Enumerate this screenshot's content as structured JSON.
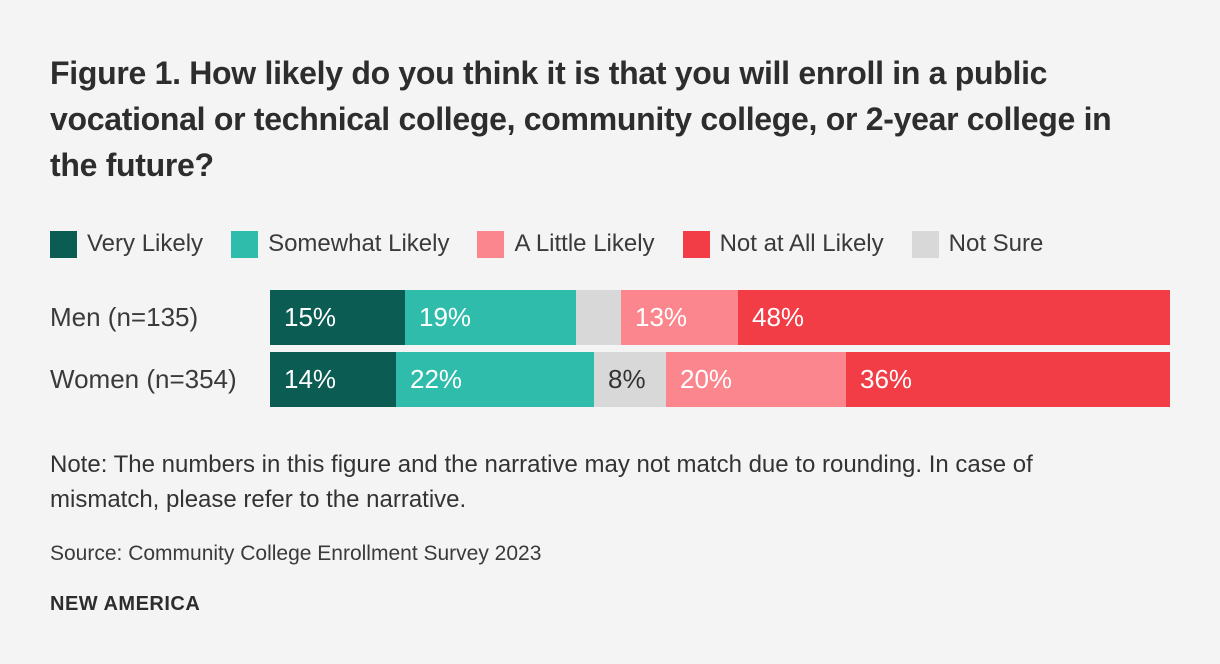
{
  "figure": {
    "title": "Figure 1. How likely do you think it is that you will enroll in a public vocational or technical college, community college, or 2-year college in the future?",
    "note": "Note: The numbers in this figure and the narrative may not match due to rounding. In case of mismatch, please refer to the narrative.",
    "source": "Source: Community College Enrollment Survey 2023",
    "brand": "NEW AMERICA"
  },
  "colors": {
    "background": "#f4f4f4",
    "very_likely": "#0b5c52",
    "somewhat_likely": "#2fbcab",
    "a_little_likely": "#fb868d",
    "not_at_all_likely": "#f23c46",
    "not_sure": "#d8d8d8",
    "text": "#333333"
  },
  "chart_data": {
    "type": "bar",
    "subtype": "stacked-horizontal",
    "unit": "percent",
    "title": "Figure 1. How likely do you think it is that you will enroll in a public vocational or technical college, community college, or 2-year college in the future?",
    "xlabel": "",
    "ylabel": "",
    "xlim": [
      0,
      100
    ],
    "grid": false,
    "legend_position": "top",
    "categories": [
      "Men (n=135)",
      "Women (n=354)"
    ],
    "legend": [
      {
        "label": "Very Likely",
        "color": "#0b5c52"
      },
      {
        "label": "Somewhat Likely",
        "color": "#2fbcab"
      },
      {
        "label": "A Little Likely",
        "color": "#fb868d"
      },
      {
        "label": "Not at All Likely",
        "color": "#f23c46"
      },
      {
        "label": "Not Sure",
        "color": "#d8d8d8"
      }
    ],
    "segment_order": [
      "Very Likely",
      "Somewhat Likely",
      "Not Sure",
      "A Little Likely",
      "Not at All Likely"
    ],
    "series": [
      {
        "name": "Very Likely",
        "values": [
          15,
          14
        ]
      },
      {
        "name": "Somewhat Likely",
        "values": [
          19,
          22
        ]
      },
      {
        "name": "Not Sure",
        "values": [
          5,
          8
        ]
      },
      {
        "name": "A Little Likely",
        "values": [
          13,
          20
        ]
      },
      {
        "name": "Not at All Likely",
        "values": [
          48,
          36
        ]
      }
    ],
    "rows": [
      {
        "label": "Men (n=135)",
        "segments": [
          {
            "name": "Very Likely",
            "value": 15,
            "display": "15%",
            "label_style": "light"
          },
          {
            "name": "Somewhat Likely",
            "value": 19,
            "display": "19%",
            "label_style": "light"
          },
          {
            "name": "Not Sure",
            "value": 5,
            "display": "",
            "label_style": "dark"
          },
          {
            "name": "A Little Likely",
            "value": 13,
            "display": "13%",
            "label_style": "light"
          },
          {
            "name": "Not at All Likely",
            "value": 48,
            "display": "48%",
            "label_style": "light"
          }
        ]
      },
      {
        "label": "Women (n=354)",
        "segments": [
          {
            "name": "Very Likely",
            "value": 14,
            "display": "14%",
            "label_style": "light"
          },
          {
            "name": "Somewhat Likely",
            "value": 22,
            "display": "22%",
            "label_style": "light"
          },
          {
            "name": "Not Sure",
            "value": 8,
            "display": "8%",
            "label_style": "dark"
          },
          {
            "name": "A Little Likely",
            "value": 20,
            "display": "20%",
            "label_style": "light"
          },
          {
            "name": "Not at All Likely",
            "value": 36,
            "display": "36%",
            "label_style": "light"
          }
        ]
      }
    ]
  }
}
